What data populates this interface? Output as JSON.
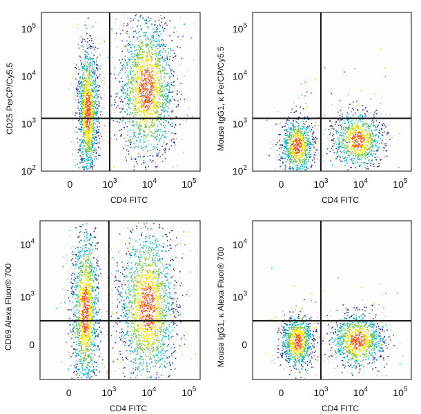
{
  "chart_data": [
    {
      "type": "scatter",
      "xlabel": "CD4 FITC",
      "ylabel": "CD25 PerCP/Cy5.5",
      "x_scale": "biexponential",
      "y_scale": "log",
      "x_ticks": [
        "0",
        "10^3",
        "10^4",
        "10^5"
      ],
      "y_ticks": [
        "10^2",
        "10^3",
        "10^4",
        "10^5"
      ],
      "gate": {
        "x": 1000,
        "y": 1300
      },
      "populations": [
        {
          "x_center": 150,
          "y_center": 1000,
          "y_range": [
            100,
            30000
          ],
          "density": "high"
        },
        {
          "x_center": 5000,
          "y_center": 3000,
          "y_range": [
            200,
            80000
          ],
          "density": "high"
        }
      ]
    },
    {
      "type": "scatter",
      "xlabel": "CD4 FITC",
      "ylabel": "Mouse IgG1, κ PerCP/Cy5.5",
      "x_scale": "biexponential",
      "y_scale": "log",
      "x_ticks": [
        "0",
        "10^3",
        "10^4",
        "10^5"
      ],
      "y_ticks": [
        "10^2",
        "10^3",
        "10^4",
        "10^5"
      ],
      "gate": {
        "x": 1000,
        "y": 1300
      },
      "populations": [
        {
          "x_center": 150,
          "y_center": 400,
          "y_range": [
            100,
            2000
          ],
          "density": "high"
        },
        {
          "x_center": 5000,
          "y_center": 500,
          "y_range": [
            100,
            2000
          ],
          "density": "high"
        }
      ]
    },
    {
      "type": "scatter",
      "xlabel": "CD4 FITC",
      "ylabel": "CD69 Alexa Fluor® 700",
      "x_scale": "biexponential",
      "y_scale": "biexponential",
      "x_ticks": [
        "0",
        "10^3",
        "10^4",
        "10^5"
      ],
      "y_ticks": [
        "0",
        "10^3",
        "10^4"
      ],
      "gate": {
        "x": 1000,
        "y": 500
      },
      "populations": [
        {
          "x_center": 150,
          "y_center": 0,
          "y_range": [
            -300,
            20000
          ],
          "density": "high"
        },
        {
          "x_center": 5000,
          "y_center": 300,
          "y_range": [
            -300,
            20000
          ],
          "density": "high"
        }
      ]
    },
    {
      "type": "scatter",
      "xlabel": "CD4 FITC",
      "ylabel": "Mouse IgG1, κ Alexa Fluor® 700",
      "x_scale": "biexponential",
      "y_scale": "biexponential",
      "x_ticks": [
        "0",
        "10^3",
        "10^4",
        "10^5"
      ],
      "y_ticks": [
        "0",
        "10^3",
        "10^4"
      ],
      "gate": {
        "x": 1000,
        "y": 500
      },
      "populations": [
        {
          "x_center": 150,
          "y_center": 0,
          "y_range": [
            -300,
            500
          ],
          "density": "high"
        },
        {
          "x_center": 5000,
          "y_center": 0,
          "y_range": [
            -300,
            500
          ],
          "density": "high"
        }
      ]
    }
  ],
  "colors": {
    "density_low": "#1a237e",
    "density_mid": "#00acc1",
    "density_high_1": "#76c043",
    "density_high_2": "#f5e600",
    "density_peak": "#e8561f",
    "sparse": "#9e9e9e"
  }
}
